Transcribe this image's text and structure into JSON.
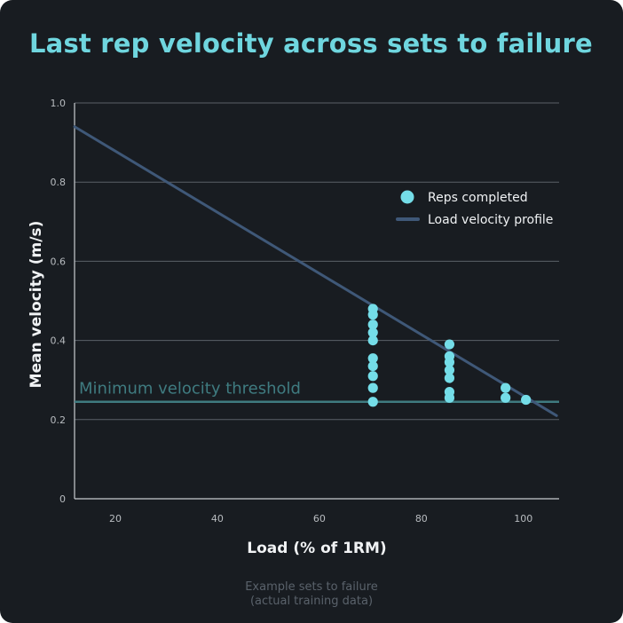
{
  "title": "Last rep velocity across sets to failure",
  "caption": [
    "Example sets to failure",
    "(actual training data)"
  ],
  "colors": {
    "background": "#181c21",
    "title": "#6fd6df",
    "points": "#74dde8",
    "profile_line": "#3f5878",
    "threshold_line": "#3f7b80",
    "grid": "#5a6068",
    "axis": "#c8ccd0",
    "text": "#f0f2f4",
    "tick": "#b8bcc0"
  },
  "chart_data": {
    "type": "scatter",
    "xlabel": "Load (% of 1RM)",
    "ylabel": "Mean velocity (m/s)",
    "xlim": [
      12,
      107
    ],
    "ylim": [
      0,
      1.0
    ],
    "xticks": [
      "20",
      "40",
      "60",
      "80",
      "100"
    ],
    "yticks": [
      "0",
      "0.2",
      "0.4",
      "0.6",
      "0.8",
      "1.0"
    ],
    "grid": "horizontal",
    "legend": {
      "position": "top-right",
      "entries": [
        "Reps completed",
        "Load velocity profile"
      ]
    },
    "series": [
      {
        "name": "Reps completed",
        "type": "scatter",
        "points": [
          [
            70.5,
            0.48
          ],
          [
            70.5,
            0.465
          ],
          [
            70.5,
            0.44
          ],
          [
            70.5,
            0.42
          ],
          [
            70.5,
            0.4
          ],
          [
            70.5,
            0.355
          ],
          [
            70.5,
            0.335
          ],
          [
            70.5,
            0.31
          ],
          [
            70.5,
            0.28
          ],
          [
            70.5,
            0.245
          ],
          [
            85.5,
            0.39
          ],
          [
            85.5,
            0.36
          ],
          [
            85.5,
            0.345
          ],
          [
            85.5,
            0.325
          ],
          [
            85.5,
            0.305
          ],
          [
            85.5,
            0.27
          ],
          [
            85.5,
            0.255
          ],
          [
            96.5,
            0.28
          ],
          [
            96.5,
            0.255
          ],
          [
            100.5,
            0.25
          ]
        ]
      },
      {
        "name": "Load velocity profile",
        "type": "line",
        "points": [
          [
            12,
            0.94
          ],
          [
            106.5,
            0.21
          ]
        ]
      }
    ],
    "annotations": [
      {
        "text": "Minimum velocity threshold",
        "y": 0.245
      }
    ]
  }
}
